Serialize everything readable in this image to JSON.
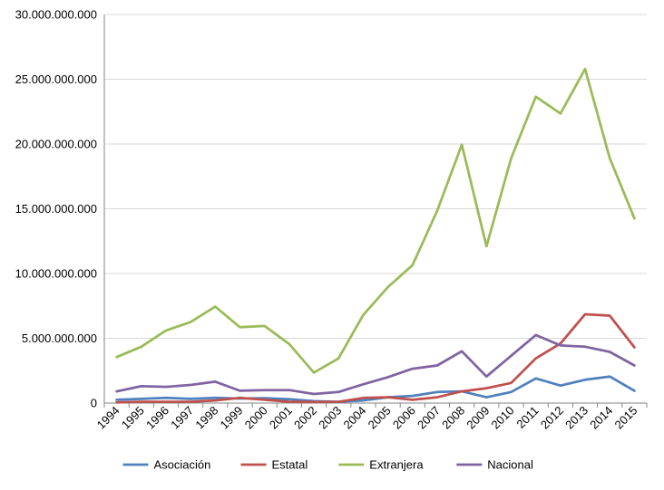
{
  "chart_data": {
    "type": "line",
    "title": "",
    "xlabel": "",
    "ylabel": "",
    "categories": [
      "1994",
      "1995",
      "1996",
      "1997",
      "1998",
      "1999",
      "2000",
      "2001",
      "2002",
      "2003",
      "2004",
      "2005",
      "2006",
      "2007",
      "2008",
      "2009",
      "2010",
      "2011",
      "2012",
      "2013",
      "2014",
      "2015"
    ],
    "ylim": [
      0,
      30000000000
    ],
    "yticks": [
      0,
      5000000000,
      10000000000,
      15000000000,
      20000000000,
      25000000000,
      30000000000
    ],
    "ytick_labels": [
      "0",
      "5.000.000.000",
      "10.000.000.000",
      "15.000.000.000",
      "20.000.000.000",
      "25.000.000.000",
      "30.000.000.000"
    ],
    "grid": true,
    "legend_position": "bottom",
    "series": [
      {
        "name": "Asociación",
        "color": "#4f81bd",
        "values": [
          250000000,
          320000000,
          400000000,
          320000000,
          400000000,
          350000000,
          380000000,
          300000000,
          150000000,
          100000000,
          200000000,
          450000000,
          550000000,
          850000000,
          900000000,
          450000000,
          850000000,
          1900000000,
          1350000000,
          1800000000,
          2050000000,
          950000000
        ]
      },
      {
        "name": "Estatal",
        "color": "#c0504d",
        "values": [
          50000000,
          100000000,
          100000000,
          100000000,
          200000000,
          400000000,
          250000000,
          100000000,
          80000000,
          100000000,
          400000000,
          450000000,
          250000000,
          450000000,
          900000000,
          1150000000,
          1550000000,
          3450000000,
          4600000000,
          6850000000,
          6750000000,
          4300000000
        ]
      },
      {
        "name": "Extranjera",
        "color": "#9bbb59",
        "values": [
          3550000000,
          4350000000,
          5600000000,
          6250000000,
          7450000000,
          5850000000,
          5950000000,
          4550000000,
          2350000000,
          3450000000,
          6800000000,
          8950000000,
          10650000000,
          14850000000,
          19950000000,
          12100000000,
          18900000000,
          23650000000,
          22350000000,
          25800000000,
          18900000000,
          14250000000
        ]
      },
      {
        "name": "Nacional",
        "color": "#8064a2",
        "values": [
          900000000,
          1300000000,
          1250000000,
          1400000000,
          1650000000,
          950000000,
          1000000000,
          1000000000,
          700000000,
          850000000,
          1450000000,
          2000000000,
          2650000000,
          2900000000,
          4000000000,
          2050000000,
          3650000000,
          5250000000,
          4450000000,
          4350000000,
          3950000000,
          2900000000
        ]
      }
    ]
  }
}
